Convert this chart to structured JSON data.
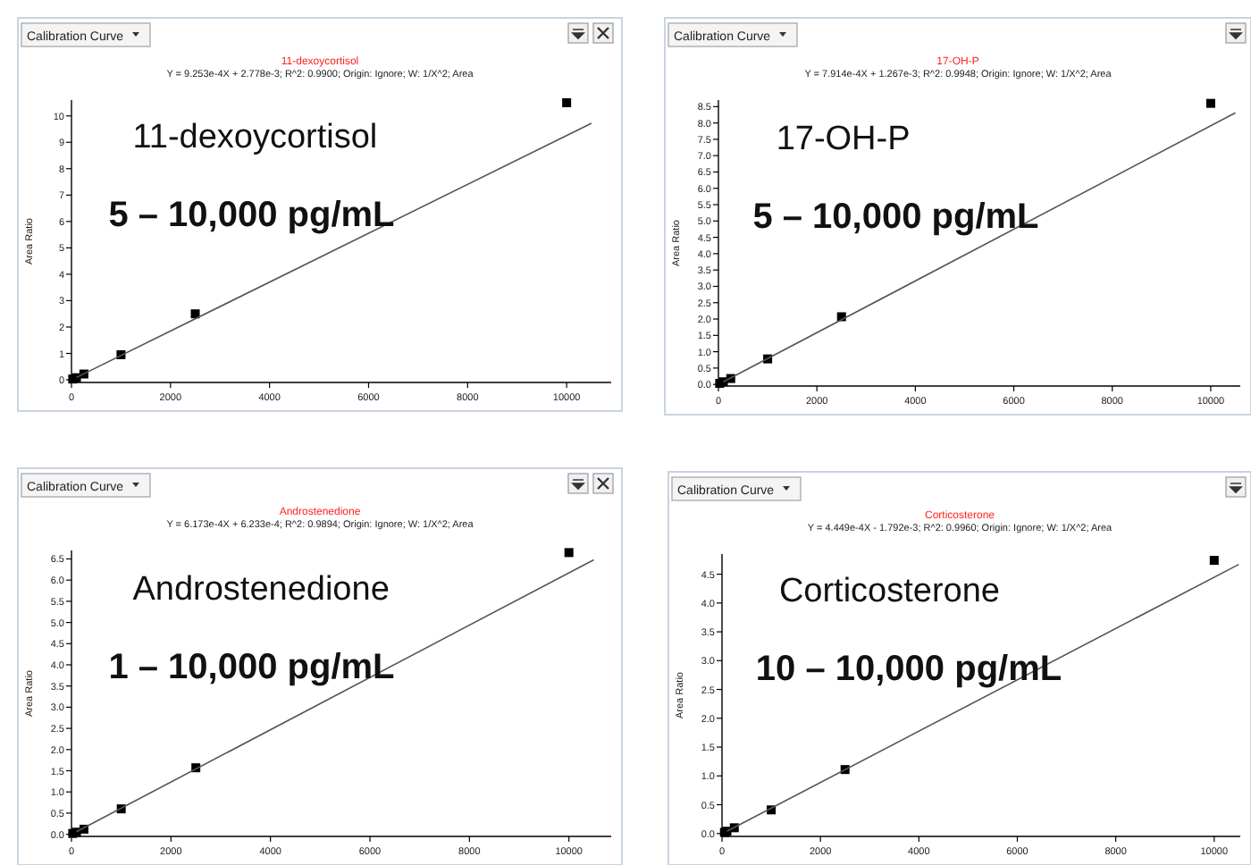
{
  "chart_data": [
    {
      "type": "scatter",
      "title": "11-dexoycortisol",
      "subtitle": "Y = 9.253e-4X + 2.778e-3; R^2: 0.9900; Origin: Ignore; W: 1/X^2; Area",
      "ylabel": "Area Ratio",
      "annotations": [
        "Calibration Curve",
        "11-dexoycortisol",
        "5 – 10,000 pg/mL"
      ],
      "marker": "square",
      "grid": false,
      "xlim": [
        0,
        10900
      ],
      "xticks": [
        0,
        2000,
        4000,
        6000,
        8000,
        10000
      ],
      "ylim": [
        -0.1,
        10.6
      ],
      "yticks": [
        0,
        1,
        2,
        3,
        4,
        5,
        6,
        7,
        8,
        9,
        10
      ],
      "series": [
        {
          "color": "#000000",
          "x": [
            25,
            100,
            250,
            1000,
            2500,
            10000
          ],
          "values": [
            0.03,
            0.08,
            0.22,
            0.95,
            2.5,
            10.5
          ]
        },
        {
          "type": "line",
          "color": "#555555",
          "marker": "none",
          "x": [
            100,
            10500
          ],
          "values": [
            0.09,
            9.72
          ]
        }
      ]
    },
    {
      "type": "scatter",
      "title": "17-OH-P",
      "subtitle": "Y = 7.914e-4X + 1.267e-3; R^2: 0.9948; Origin: Ignore; W: 1/X^2; Area",
      "ylabel": "Area Ratio",
      "annotations": [
        "Calibration Curve",
        "17-OH-P",
        "5 – 10,000 pg/mL"
      ],
      "marker": "square",
      "grid": false,
      "xlim": [
        0,
        10600
      ],
      "xticks": [
        0,
        2000,
        4000,
        6000,
        8000,
        10000
      ],
      "ylim": [
        -0.05,
        8.7
      ],
      "yticks": [
        {
          "value": 0,
          "label": "0.0"
        },
        {
          "value": 0.5,
          "label": "0.5"
        },
        {
          "value": 1,
          "label": "1.0"
        },
        {
          "value": 1.5,
          "label": "1.5"
        },
        {
          "value": 2,
          "label": "2.0"
        },
        {
          "value": 2.5,
          "label": "2.5"
        },
        {
          "value": 3,
          "label": "3.0"
        },
        {
          "value": 3.5,
          "label": "3.5"
        },
        {
          "value": 4,
          "label": "4.0"
        },
        {
          "value": 4.5,
          "label": "4.5"
        },
        {
          "value": 5,
          "label": "5.0"
        },
        {
          "value": 5.5,
          "label": "5.5"
        },
        {
          "value": 6,
          "label": "6.0"
        },
        {
          "value": 6.5,
          "label": "6.5"
        },
        {
          "value": 7,
          "label": "7.0"
        },
        {
          "value": 7.5,
          "label": "7.5"
        },
        {
          "value": 8,
          "label": "8.0"
        },
        {
          "value": 8.5,
          "label": "8.5"
        }
      ],
      "series": [
        {
          "color": "#000000",
          "x": [
            25,
            100,
            250,
            1000,
            2500,
            10000
          ],
          "values": [
            0.03,
            0.08,
            0.18,
            0.78,
            2.07,
            8.6
          ]
        },
        {
          "type": "line",
          "color": "#555555",
          "marker": "none",
          "x": [
            100,
            10500
          ],
          "values": [
            0.08,
            8.31
          ]
        }
      ]
    },
    {
      "type": "scatter",
      "title": "Androstenedione",
      "subtitle": "Y = 6.173e-4X + 6.233e-4; R^2: 0.9894; Origin: Ignore; W: 1/X^2; Area",
      "ylabel": "Area Ratio",
      "annotations": [
        "Calibration Curve",
        "Androstenedione",
        "1 – 10,000 pg/mL"
      ],
      "marker": "square",
      "grid": false,
      "xlim": [
        0,
        10850
      ],
      "xticks": [
        0,
        2000,
        4000,
        6000,
        8000,
        10000
      ],
      "ylim": [
        -0.05,
        6.7
      ],
      "yticks": [
        {
          "value": 0,
          "label": "0.0"
        },
        {
          "value": 0.5,
          "label": "0.5"
        },
        {
          "value": 1,
          "label": "1.0"
        },
        {
          "value": 1.5,
          "label": "1.5"
        },
        {
          "value": 2,
          "label": "2.0"
        },
        {
          "value": 2.5,
          "label": "2.5"
        },
        {
          "value": 3,
          "label": "3.0"
        },
        {
          "value": 3.5,
          "label": "3.5"
        },
        {
          "value": 4,
          "label": "4.0"
        },
        {
          "value": 4.5,
          "label": "4.5"
        },
        {
          "value": 5,
          "label": "5.0"
        },
        {
          "value": 5.5,
          "label": "5.5"
        },
        {
          "value": 6,
          "label": "6.0"
        },
        {
          "value": 6.5,
          "label": "6.5"
        }
      ],
      "series": [
        {
          "color": "#000000",
          "x": [
            25,
            100,
            250,
            1000,
            2500,
            10000
          ],
          "values": [
            0.02,
            0.05,
            0.12,
            0.6,
            1.57,
            6.65
          ]
        },
        {
          "type": "line",
          "color": "#555555",
          "marker": "none",
          "x": [
            100,
            10500
          ],
          "values": [
            0.06,
            6.48
          ]
        }
      ]
    },
    {
      "type": "scatter",
      "title": "Corticosterone",
      "subtitle": "Y = 4.449e-4X - 1.792e-3; R^2: 0.9960; Origin: Ignore; W: 1/X^2; Area",
      "ylabel": "Area Ratio",
      "annotations": [
        "Calibration Curve",
        "Corticosterone",
        "10 – 10,000 pg/mL"
      ],
      "marker": "square",
      "grid": false,
      "xlim": [
        0,
        10530
      ],
      "xticks": [
        0,
        2000,
        4000,
        6000,
        8000,
        10000
      ],
      "ylim": [
        -0.05,
        4.85
      ],
      "yticks": [
        {
          "value": 0,
          "label": "0.0"
        },
        {
          "value": 0.5,
          "label": "0.5"
        },
        {
          "value": 1,
          "label": "1.0"
        },
        {
          "value": 1.5,
          "label": "1.5"
        },
        {
          "value": 2,
          "label": "2.0"
        },
        {
          "value": 2.5,
          "label": "2.5"
        },
        {
          "value": 3,
          "label": "3.0"
        },
        {
          "value": 3.5,
          "label": "3.5"
        },
        {
          "value": 4,
          "label": "4.0"
        },
        {
          "value": 4.5,
          "label": "4.5"
        }
      ],
      "series": [
        {
          "color": "#000000",
          "x": [
            50,
            100,
            250,
            1000,
            2500,
            10000
          ],
          "values": [
            0.02,
            0.04,
            0.1,
            0.41,
            1.11,
            4.74
          ]
        },
        {
          "type": "line",
          "color": "#555555",
          "marker": "none",
          "x": [
            100,
            10500
          ],
          "values": [
            0.04,
            4.67
          ]
        }
      ]
    }
  ]
}
